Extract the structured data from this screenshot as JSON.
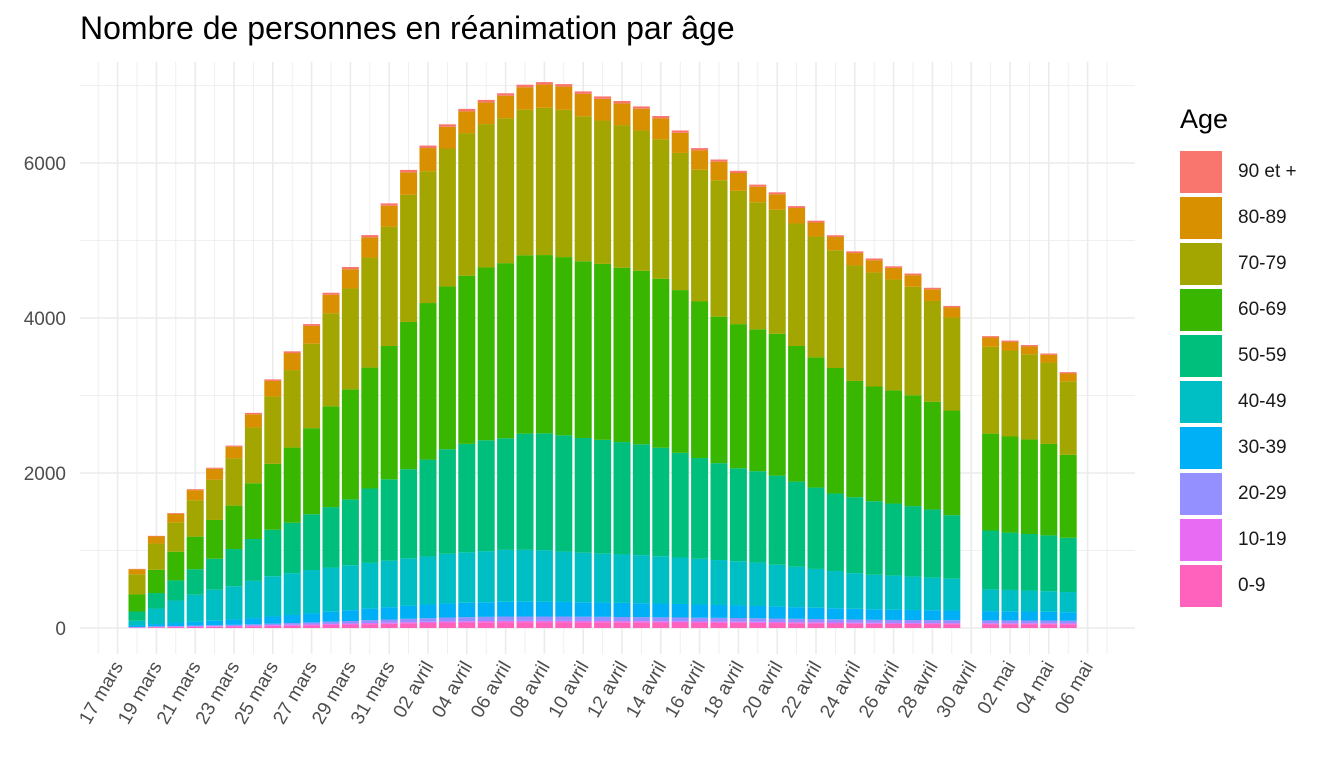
{
  "chart_data": {
    "type": "bar",
    "stacked": true,
    "title": "Nombre de personnes en réanimation par âge",
    "xlabel": "",
    "ylabel": "",
    "ylim": [
      0,
      7000
    ],
    "yticks": [
      0,
      2000,
      4000,
      6000
    ],
    "grid": true,
    "legend_title": "Age",
    "legend_position": "right",
    "x_tick_labels": [
      "17 mars",
      "19 mars",
      "21 mars",
      "23 mars",
      "25 mars",
      "27 mars",
      "29 mars",
      "31 mars",
      "02 avril",
      "04 avril",
      "06 avril",
      "08 avril",
      "10 avril",
      "12 avril",
      "14 avril",
      "16 avril",
      "18 avril",
      "20 avril",
      "22 avril",
      "24 avril",
      "26 avril",
      "28 avril",
      "30 avril",
      "02 mai",
      "04 mai",
      "06 mai"
    ],
    "categories": [
      "18 mars",
      "19 mars",
      "20 mars",
      "21 mars",
      "22 mars",
      "23 mars",
      "24 mars",
      "25 mars",
      "26 mars",
      "27 mars",
      "28 mars",
      "29 mars",
      "30 mars",
      "31 mars",
      "01 avril",
      "02 avril",
      "03 avril",
      "04 avril",
      "05 avril",
      "06 avril",
      "07 avril",
      "08 avril",
      "09 avril",
      "10 avril",
      "11 avril",
      "12 avril",
      "13 avril",
      "14 avril",
      "15 avril",
      "16 avril",
      "17 avril",
      "18 avril",
      "19 avril",
      "20 avril",
      "21 avril",
      "22 avril",
      "23 avril",
      "24 avril",
      "25 avril",
      "26 avril",
      "27 avril",
      "28 avril",
      "29 avril",
      "30 avril",
      "01 mai",
      "02 mai",
      "03 mai",
      "04 mai",
      "05 mai"
    ],
    "series": [
      {
        "name": "0-9",
        "color": "#FF61C3",
        "values": [
          5,
          10,
          12,
          14,
          16,
          18,
          22,
          26,
          30,
          34,
          40,
          44,
          50,
          55,
          60,
          65,
          70,
          72,
          74,
          76,
          76,
          76,
          76,
          76,
          75,
          74,
          73,
          72,
          71,
          70,
          69,
          68,
          66,
          64,
          62,
          60,
          58,
          56,
          54,
          52,
          52,
          51,
          50,
          null,
          50,
          50,
          50,
          49,
          48
        ]
      },
      {
        "name": "10-19",
        "color": "#DB72FB",
        "values": [
          3,
          4,
          5,
          6,
          7,
          8,
          9,
          10,
          11,
          12,
          12,
          13,
          14,
          14,
          15,
          15,
          15,
          16,
          16,
          16,
          16,
          16,
          16,
          15,
          15,
          15,
          15,
          15,
          15,
          14,
          14,
          14,
          14,
          13,
          13,
          13,
          13,
          13,
          12,
          12,
          12,
          12,
          12,
          null,
          11,
          11,
          11,
          11,
          11
        ]
      },
      {
        "name": "20-29",
        "color": "#93AA00",
        "values": [
          5,
          7,
          9,
          11,
          13,
          15,
          17,
          20,
          23,
          26,
          30,
          33,
          36,
          40,
          44,
          47,
          50,
          52,
          54,
          56,
          56,
          56,
          56,
          55,
          54,
          53,
          52,
          51,
          50,
          49,
          48,
          47,
          46,
          45,
          44,
          43,
          42,
          41,
          40,
          40,
          39,
          39,
          38,
          null,
          37,
          37,
          36,
          36,
          35
        ]
      },
      {
        "name": "30-39",
        "color": "#00B9E3",
        "values": [
          20,
          30,
          38,
          48,
          58,
          68,
          80,
          92,
          104,
          116,
          128,
          140,
          150,
          160,
          170,
          176,
          182,
          186,
          188,
          190,
          190,
          189,
          188,
          186,
          184,
          182,
          180,
          178,
          174,
          170,
          166,
          162,
          158,
          154,
          150,
          146,
          142,
          138,
          135,
          132,
          130,
          128,
          126,
          null,
          120,
          118,
          116,
          114,
          110
        ]
      },
      {
        "name": "40-49",
        "color": "#00C19A",
        "values": [
          60,
          200,
          290,
          350,
          400,
          430,
          480,
          520,
          540,
          560,
          570,
          580,
          590,
          600,
          610,
          620,
          640,
          650,
          660,
          670,
          670,
          665,
          650,
          640,
          630,
          625,
          620,
          610,
          600,
          590,
          580,
          570,
          560,
          540,
          520,
          500,
          480,
          460,
          445,
          440,
          430,
          420,
          410,
          null,
          280,
          275,
          270,
          265,
          260
        ]
      },
      {
        "name": "50-59",
        "color": "#00BA38",
        "values": [
          120,
          200,
          260,
          330,
          400,
          480,
          540,
          600,
          650,
          720,
          780,
          850,
          960,
          1050,
          1150,
          1250,
          1350,
          1400,
          1430,
          1440,
          1500,
          1510,
          1500,
          1480,
          1470,
          1450,
          1430,
          1400,
          1350,
          1300,
          1250,
          1200,
          1180,
          1150,
          1100,
          1050,
          1000,
          980,
          950,
          930,
          910,
          880,
          820,
          null,
          760,
          740,
          730,
          720,
          700
        ]
      },
      {
        "name": "60-69",
        "color": "#53B400",
        "values": [
          220,
          300,
          370,
          420,
          500,
          560,
          720,
          850,
          970,
          1110,
          1300,
          1420,
          1560,
          1720,
          1900,
          2020,
          2100,
          2170,
          2230,
          2260,
          2300,
          2300,
          2300,
          2280,
          2270,
          2250,
          2240,
          2180,
          2100,
          2020,
          1890,
          1860,
          1830,
          1830,
          1750,
          1680,
          1620,
          1500,
          1480,
          1460,
          1430,
          1390,
          1350,
          null,
          1250,
          1240,
          1220,
          1180,
          1070
        ]
      },
      {
        "name": "70-79",
        "color": "#C49A00",
        "values": [
          260,
          340,
          380,
          470,
          520,
          610,
          720,
          870,
          1000,
          1090,
          1200,
          1300,
          1420,
          1540,
          1640,
          1700,
          1780,
          1840,
          1850,
          1870,
          1880,
          1900,
          1900,
          1870,
          1850,
          1840,
          1810,
          1800,
          1770,
          1700,
          1760,
          1720,
          1640,
          1600,
          1580,
          1560,
          1520,
          1490,
          1470,
          1430,
          1400,
          1300,
          1200,
          null,
          1120,
          1110,
          1100,
          1050,
          950
        ]
      },
      {
        "name": "80-89",
        "color": "#F8766D",
        "values": [
          65,
          90,
          110,
          130,
          140,
          150,
          170,
          200,
          220,
          230,
          240,
          250,
          260,
          270,
          290,
          300,
          280,
          280,
          280,
          290,
          290,
          300,
          300,
          290,
          280,
          280,
          280,
          270,
          260,
          250,
          240,
          230,
          200,
          200,
          200,
          180,
          170,
          160,
          160,
          150,
          150,
          150,
          130,
          null,
          120,
          110,
          100,
          100,
          100
        ]
      },
      {
        "name": "90 et +",
        "color": "#F8766D",
        "values": [
          5,
          8,
          10,
          12,
          14,
          15,
          18,
          20,
          22,
          24,
          26,
          28,
          30,
          30,
          32,
          32,
          32,
          32,
          32,
          32,
          32,
          32,
          32,
          32,
          31,
          31,
          30,
          30,
          30,
          29,
          28,
          28,
          27,
          26,
          25,
          24,
          23,
          22,
          22,
          21,
          21,
          20,
          20,
          null,
          18,
          18,
          18,
          17,
          17
        ]
      }
    ]
  },
  "legend_items": [
    {
      "label": "90 et +",
      "color": "#F8766D"
    },
    {
      "label": "80-89",
      "color": "#D89000"
    },
    {
      "label": "70-79",
      "color": "#A3A500"
    },
    {
      "label": "60-69",
      "color": "#39B600"
    },
    {
      "label": "50-59",
      "color": "#00BF7D"
    },
    {
      "label": "40-49",
      "color": "#00BFC4"
    },
    {
      "label": "30-39",
      "color": "#00B0F6"
    },
    {
      "label": "20-29",
      "color": "#9590FF"
    },
    {
      "label": "10-19",
      "color": "#E76BF3"
    },
    {
      "label": "0-9",
      "color": "#FF62BC"
    }
  ]
}
